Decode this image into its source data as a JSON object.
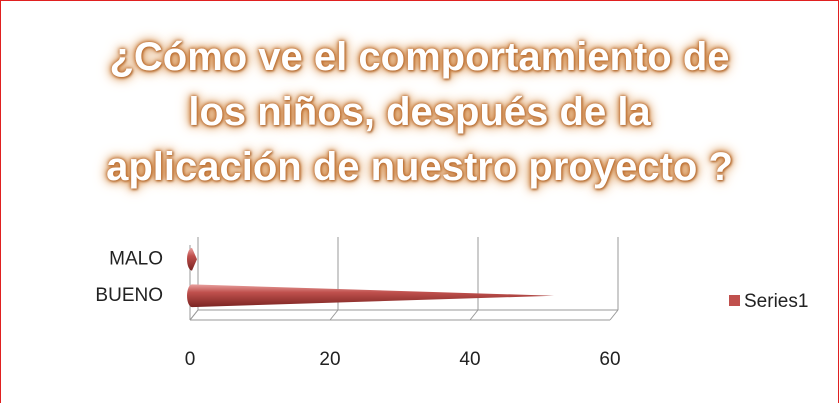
{
  "chart_data": {
    "type": "bar",
    "orientation": "horizontal",
    "title": [
      "¿Cómo ve el comportamiento de",
      "los niños,  después de la",
      "aplicación de nuestro proyecto ?"
    ],
    "categories": [
      "MALO",
      "BUENO"
    ],
    "series": [
      {
        "name": "Series1",
        "color": "#c0504d",
        "values": [
          1,
          52
        ]
      }
    ],
    "xlim": [
      0,
      60
    ],
    "xticks": [
      0,
      20,
      40,
      60
    ],
    "grid": true,
    "legend": "right"
  }
}
